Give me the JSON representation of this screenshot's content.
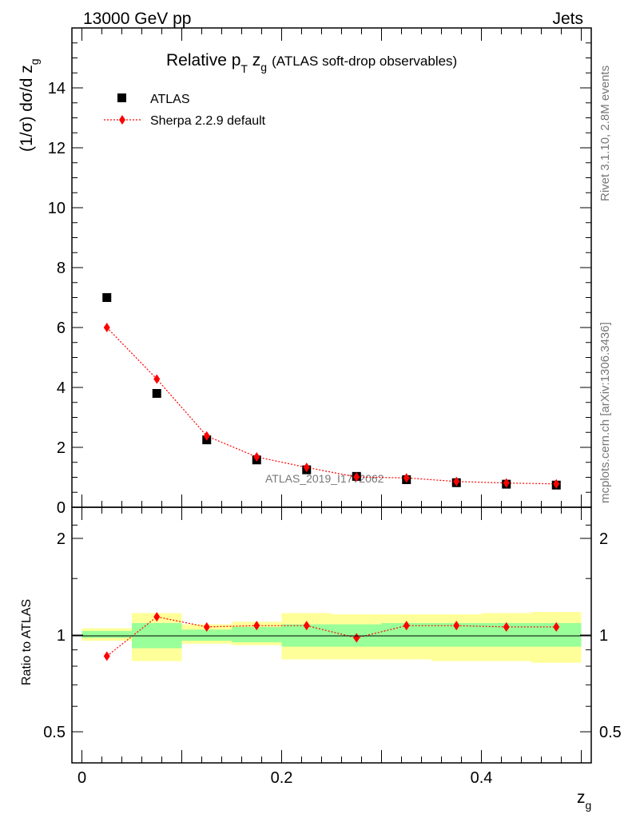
{
  "header": {
    "left": "13000 GeV pp",
    "right": "Jets"
  },
  "title": {
    "main": "Relative p",
    "sub_T": "T",
    "zg": " z",
    "sub_g": "g",
    "paren": "(ATLAS soft-drop observables)"
  },
  "side_labels": {
    "rivet": "Rivet 3.1.10,  2.8M events",
    "mcplots": "mcplots.cern.ch [arXiv:1306.3436]"
  },
  "watermark": "ATLAS_2019_I1772062",
  "legend": {
    "data_label": "ATLAS",
    "mc_label": "Sherpa 2.2.9 default"
  },
  "axes": {
    "ylabel_main": "(1/σ) dσ/d z",
    "ylabel_main_sub": "g",
    "ylabel_ratio": "Ratio to ATLAS",
    "xlabel": "z",
    "xlabel_sub": "g"
  },
  "colors": {
    "data": "#000000",
    "mc": "#ff0000",
    "band_inner": "#99ff99",
    "band_outer": "#ffff99"
  },
  "chart_data": {
    "type": "scatter",
    "x_edges": [
      0.0,
      0.05,
      0.1,
      0.15,
      0.2,
      0.25,
      0.3,
      0.35,
      0.4,
      0.45,
      0.5
    ],
    "x": [
      0.025,
      0.075,
      0.125,
      0.175,
      0.225,
      0.275,
      0.325,
      0.375,
      0.425,
      0.475
    ],
    "xlim": [
      -0.01,
      0.51
    ],
    "xticks": [
      0,
      0.2,
      0.4
    ],
    "xtick_labels": [
      "0",
      "0.2",
      "0.4"
    ],
    "main": {
      "ylim": [
        0,
        16
      ],
      "yticks": [
        0,
        2,
        4,
        6,
        8,
        10,
        12,
        14
      ],
      "ytick_labels": [
        "0",
        "2",
        "4",
        "6",
        "8",
        "10",
        "12",
        "14"
      ],
      "series": [
        {
          "name": "ATLAS",
          "values": [
            7.0,
            3.8,
            2.25,
            1.58,
            1.25,
            1.03,
            0.92,
            0.82,
            0.77,
            0.74
          ]
        },
        {
          "name": "Sherpa 2.2.9 default",
          "values": [
            6.0,
            4.28,
            2.38,
            1.68,
            1.33,
            1.01,
            0.98,
            0.86,
            0.81,
            0.78
          ]
        }
      ]
    },
    "ratio": {
      "yscale": "log",
      "ylim": [
        0.4,
        2.5
      ],
      "yticks": [
        0.5,
        1,
        2
      ],
      "ytick_labels": [
        "0.5",
        "1",
        "2"
      ],
      "mc_ratio": [
        0.86,
        1.14,
        1.06,
        1.07,
        1.07,
        0.98,
        1.07,
        1.07,
        1.06,
        1.06
      ],
      "band_inner": [
        [
          0.98,
          1.03
        ],
        [
          0.91,
          1.09
        ],
        [
          0.96,
          1.04
        ],
        [
          0.95,
          1.06
        ],
        [
          0.92,
          1.08
        ],
        [
          0.92,
          1.08
        ],
        [
          0.92,
          1.09
        ],
        [
          0.92,
          1.09
        ],
        [
          0.92,
          1.09
        ],
        [
          0.92,
          1.09
        ]
      ],
      "band_outer": [
        [
          0.96,
          1.05
        ],
        [
          0.83,
          1.17
        ],
        [
          0.94,
          1.08
        ],
        [
          0.93,
          1.1
        ],
        [
          0.84,
          1.17
        ],
        [
          0.84,
          1.16
        ],
        [
          0.84,
          1.16
        ],
        [
          0.83,
          1.16
        ],
        [
          0.83,
          1.17
        ],
        [
          0.82,
          1.18
        ]
      ]
    }
  }
}
